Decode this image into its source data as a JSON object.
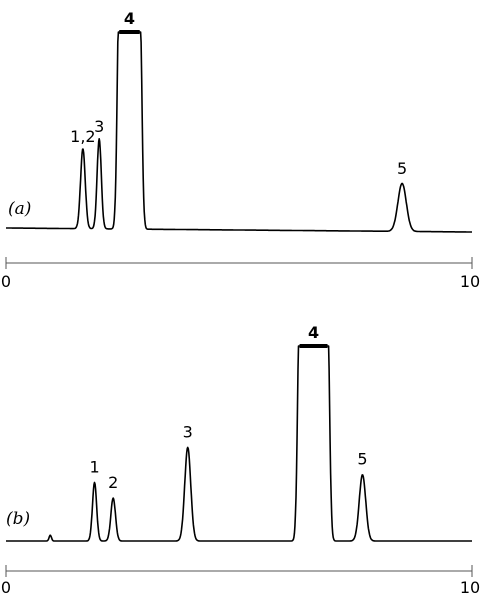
{
  "chart_data": [
    {
      "type": "line",
      "panel_label": "(a)",
      "xlim": [
        0,
        10
      ],
      "x_ticks": [
        "0",
        "10"
      ],
      "baseline": {
        "start": 0.05,
        "end": 0.0
      },
      "peaks": [
        {
          "label": "1,2",
          "x": 1.65,
          "height": 0.4,
          "width": 0.1
        },
        {
          "label": "3",
          "x": 2.0,
          "height": 0.45,
          "width": 0.09
        },
        {
          "label": "4",
          "x": 2.65,
          "height": 1.05,
          "width": 0.22,
          "flat_top": true
        },
        {
          "label": "5",
          "x": 8.5,
          "height": 0.24,
          "width": 0.18
        }
      ]
    },
    {
      "type": "line",
      "panel_label": "(b)",
      "xlim": [
        0,
        10
      ],
      "x_ticks": [
        "0",
        "10"
      ],
      "baseline": {
        "start": 0.0,
        "end": 0.0
      },
      "peaks": [
        {
          "label": "",
          "x": 0.95,
          "height": 0.03,
          "width": 0.05
        },
        {
          "label": "1",
          "x": 1.9,
          "height": 0.3,
          "width": 0.09
        },
        {
          "label": "2",
          "x": 2.3,
          "height": 0.22,
          "width": 0.1
        },
        {
          "label": "3",
          "x": 3.9,
          "height": 0.48,
          "width": 0.13
        },
        {
          "label": "4",
          "x": 6.6,
          "height": 1.05,
          "width": 0.3,
          "flat_top": true
        },
        {
          "label": "5",
          "x": 7.65,
          "height": 0.34,
          "width": 0.14
        }
      ]
    }
  ]
}
